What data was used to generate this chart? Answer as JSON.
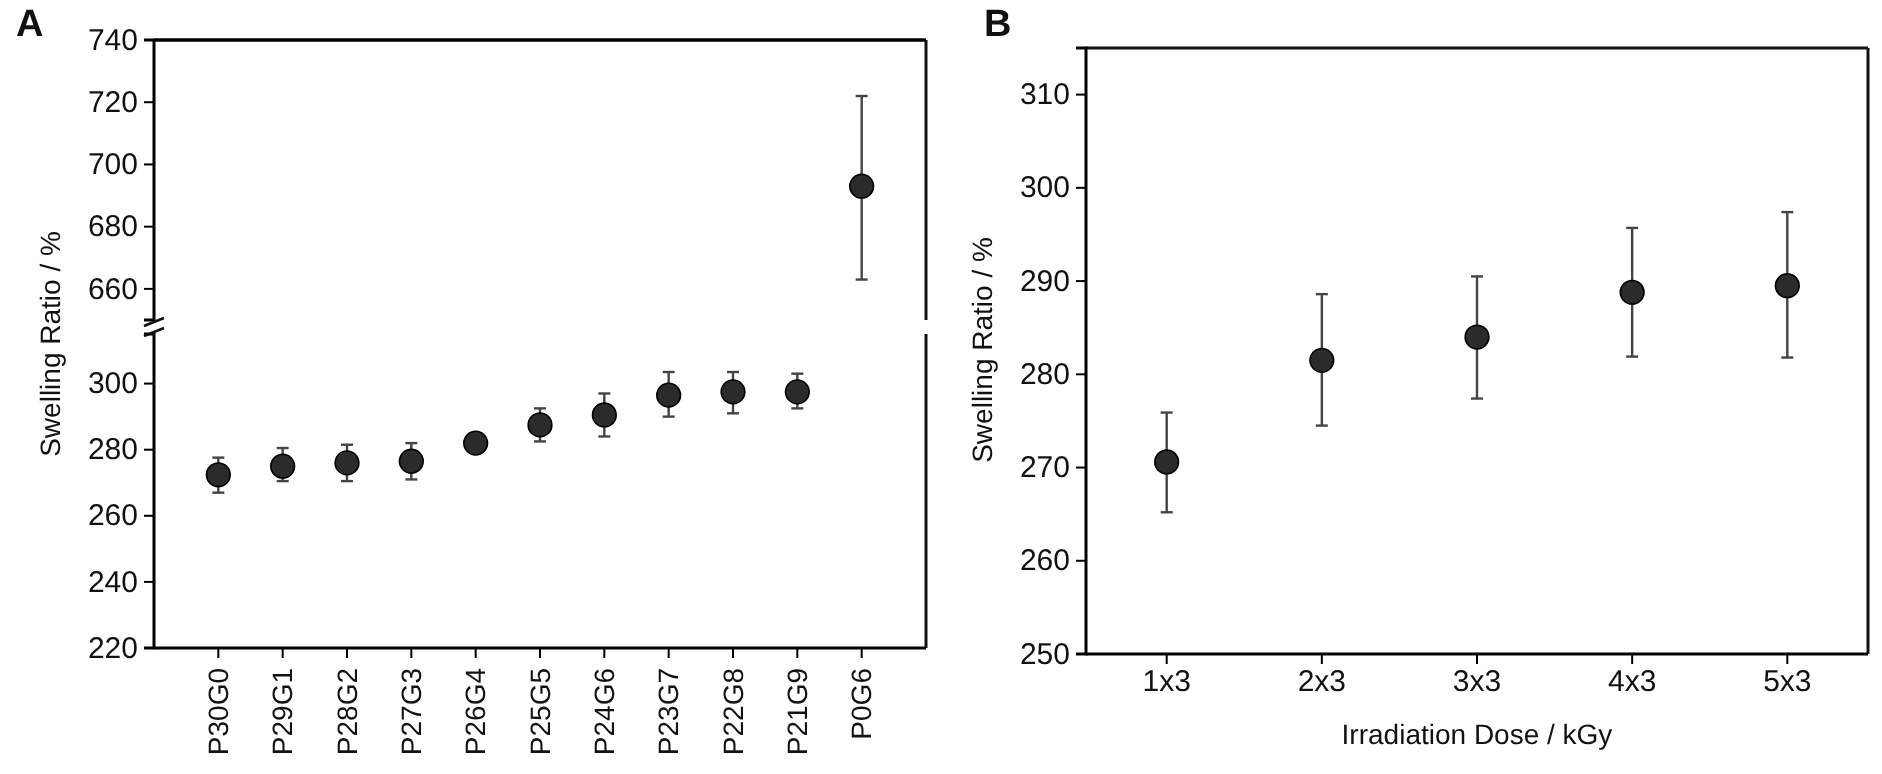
{
  "chart_data": [
    {
      "type": "scatter",
      "title": "A",
      "ylabel": "Swelling Ratio / %",
      "categories": [
        null,
        null,
        null,
        null,
        null,
        null,
        null,
        null,
        null,
        null,
        null
      ],
      "ylim": [
        650,
        740
      ],
      "yticks": [
        660,
        680,
        700,
        720,
        740
      ],
      "tick_labels": "y",
      "marker": "circle",
      "series": [
        {
          "color": "#2b2b2b",
          "values": [
            null,
            null,
            null,
            null,
            null,
            null,
            null,
            null,
            null,
            null,
            693
          ],
          "errors": [
            null,
            null,
            null,
            null,
            null,
            null,
            null,
            null,
            null,
            null,
            [
              663,
              722
            ]
          ]
        }
      ]
    },
    {
      "type": "scatter",
      "categories": [
        "P30G0",
        "P29G1",
        "P28G2",
        "P27G3",
        "P26G4",
        "P25G5",
        "P24G6",
        "P23G7",
        "P22G8",
        "P21G9",
        "P0G6"
      ],
      "ylim": [
        220,
        315
      ],
      "yticks": [
        220,
        240,
        260,
        280,
        300
      ],
      "marker": "circle",
      "series": [
        {
          "color": "#2b2b2b",
          "values": [
            272.4,
            275,
            276,
            276.5,
            282,
            287.5,
            290.5,
            296.5,
            297.5,
            297.5,
            null
          ],
          "errors": [
            [
              267,
              277.6
            ],
            [
              270.5,
              280.5
            ],
            [
              270.5,
              281.5
            ],
            [
              271,
              282
            ],
            [
              279,
              284
            ],
            [
              282.5,
              292.5
            ],
            [
              284,
              297
            ],
            [
              290,
              303.5
            ],
            [
              291,
              303.5
            ],
            [
              292.5,
              303
            ],
            null
          ]
        }
      ]
    },
    {
      "type": "scatter",
      "title": "B",
      "xlabel": "Irradiation Dose / kGy",
      "ylabel": "Swelling Ratio / %",
      "categories": [
        "1x3",
        "2x3",
        "3x3",
        "4x3",
        "5x3"
      ],
      "ylim": [
        250,
        315
      ],
      "yticks": [
        250,
        260,
        270,
        280,
        290,
        300,
        310
      ],
      "marker": "circle",
      "series": [
        {
          "color": "#2b2b2b",
          "values": [
            270.6,
            281.5,
            284,
            288.8,
            289.5
          ],
          "errors": [
            [
              265.2,
              275.9
            ],
            [
              274.5,
              288.6
            ],
            [
              277.4,
              290.5
            ],
            [
              281.9,
              295.7
            ],
            [
              281.8,
              297.4
            ]
          ]
        }
      ]
    }
  ]
}
